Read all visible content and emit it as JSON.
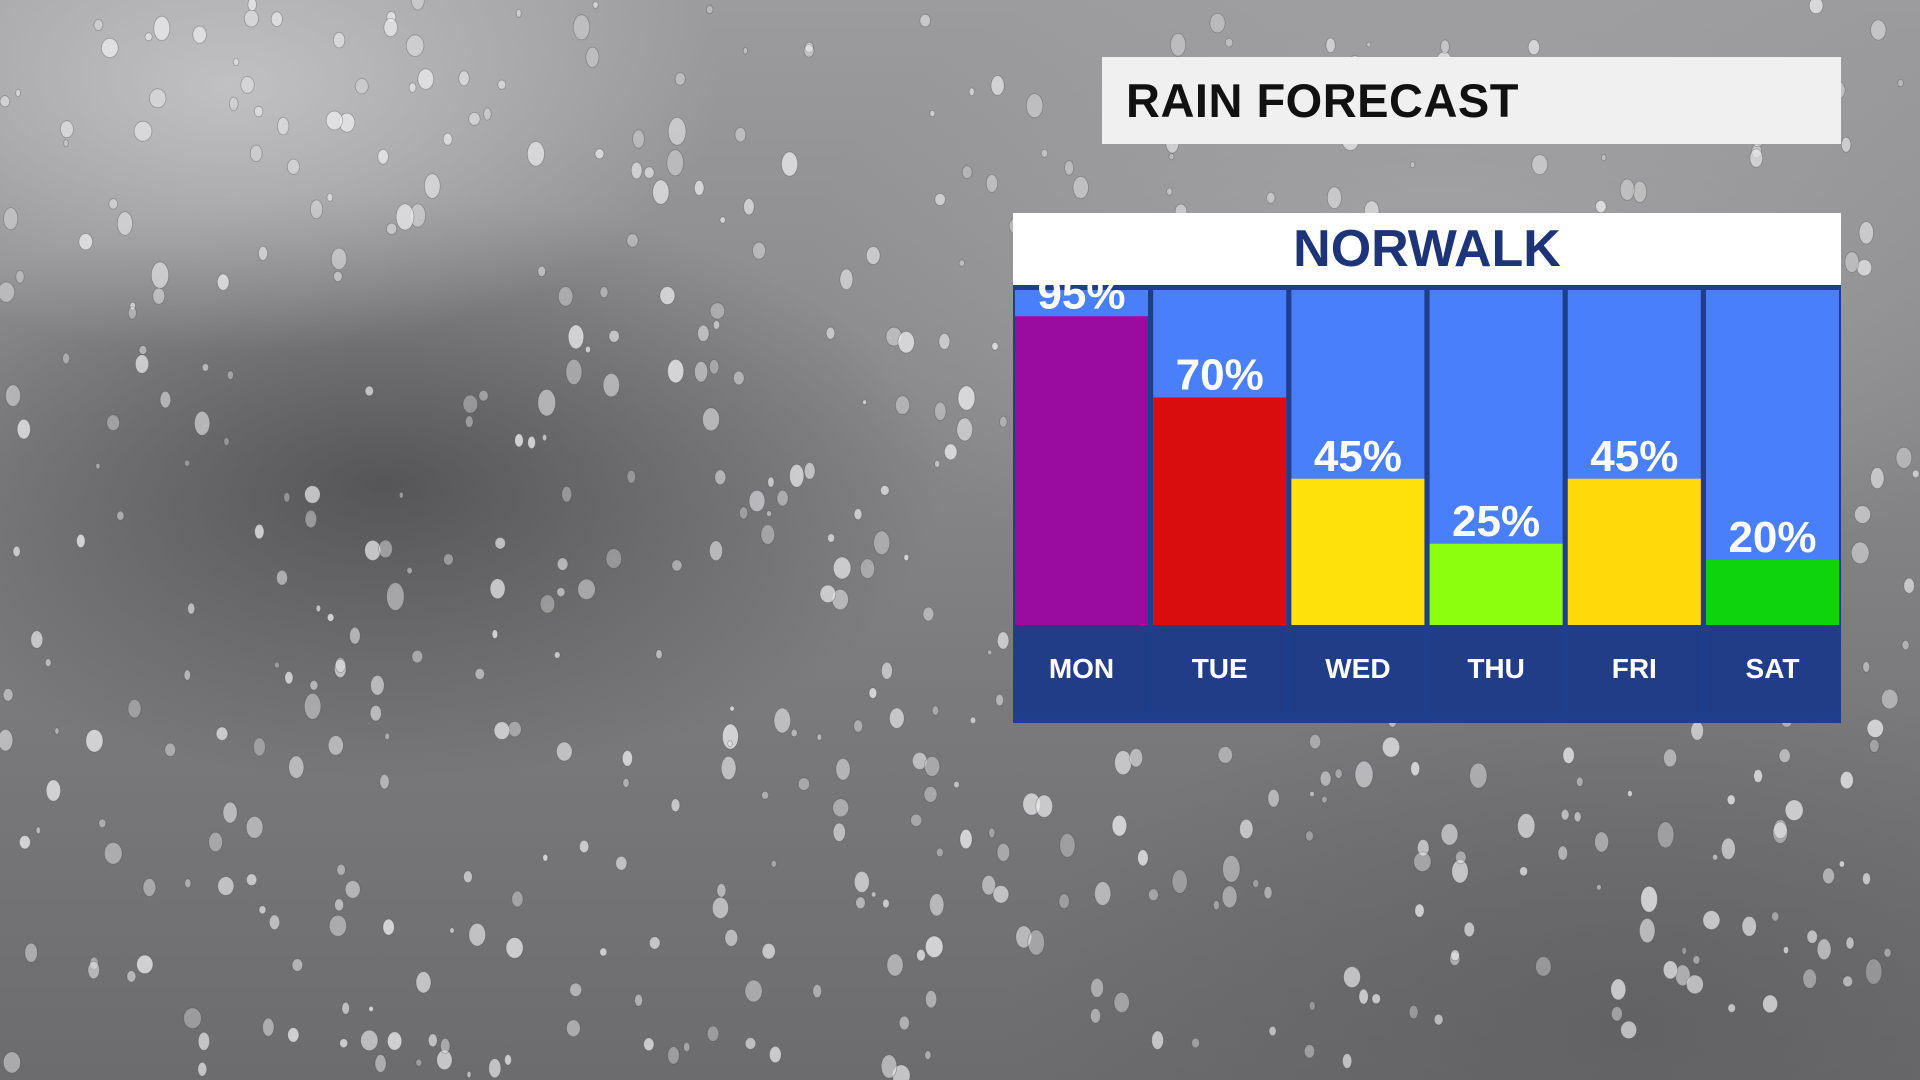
{
  "header": {
    "title": "RAIN FORECAST"
  },
  "location": {
    "name": "NORWALK"
  },
  "colors": {
    "column_bg": "#4a7ffb",
    "day_label_bg": "#213d87",
    "border": "#1f3f8c",
    "label_text": "#ffffff",
    "location_text": "#1d3478"
  },
  "chart_data": {
    "type": "bar",
    "categories": [
      "MON",
      "TUE",
      "WED",
      "THU",
      "FRI",
      "SAT"
    ],
    "values": [
      95,
      70,
      45,
      25,
      45,
      20
    ],
    "value_labels": [
      "95%",
      "70%",
      "45%",
      "25%",
      "45%",
      "20%"
    ],
    "bar_colors": [
      "#990c9d",
      "#d90d0d",
      "#ffe10a",
      "#8cff0f",
      "#ffd90a",
      "#0ed40e"
    ],
    "title": "RAIN FORECAST",
    "subtitle": "NORWALK",
    "xlabel": "",
    "ylabel": "",
    "ylim": [
      0,
      100
    ],
    "grid": false,
    "legend": "none"
  }
}
